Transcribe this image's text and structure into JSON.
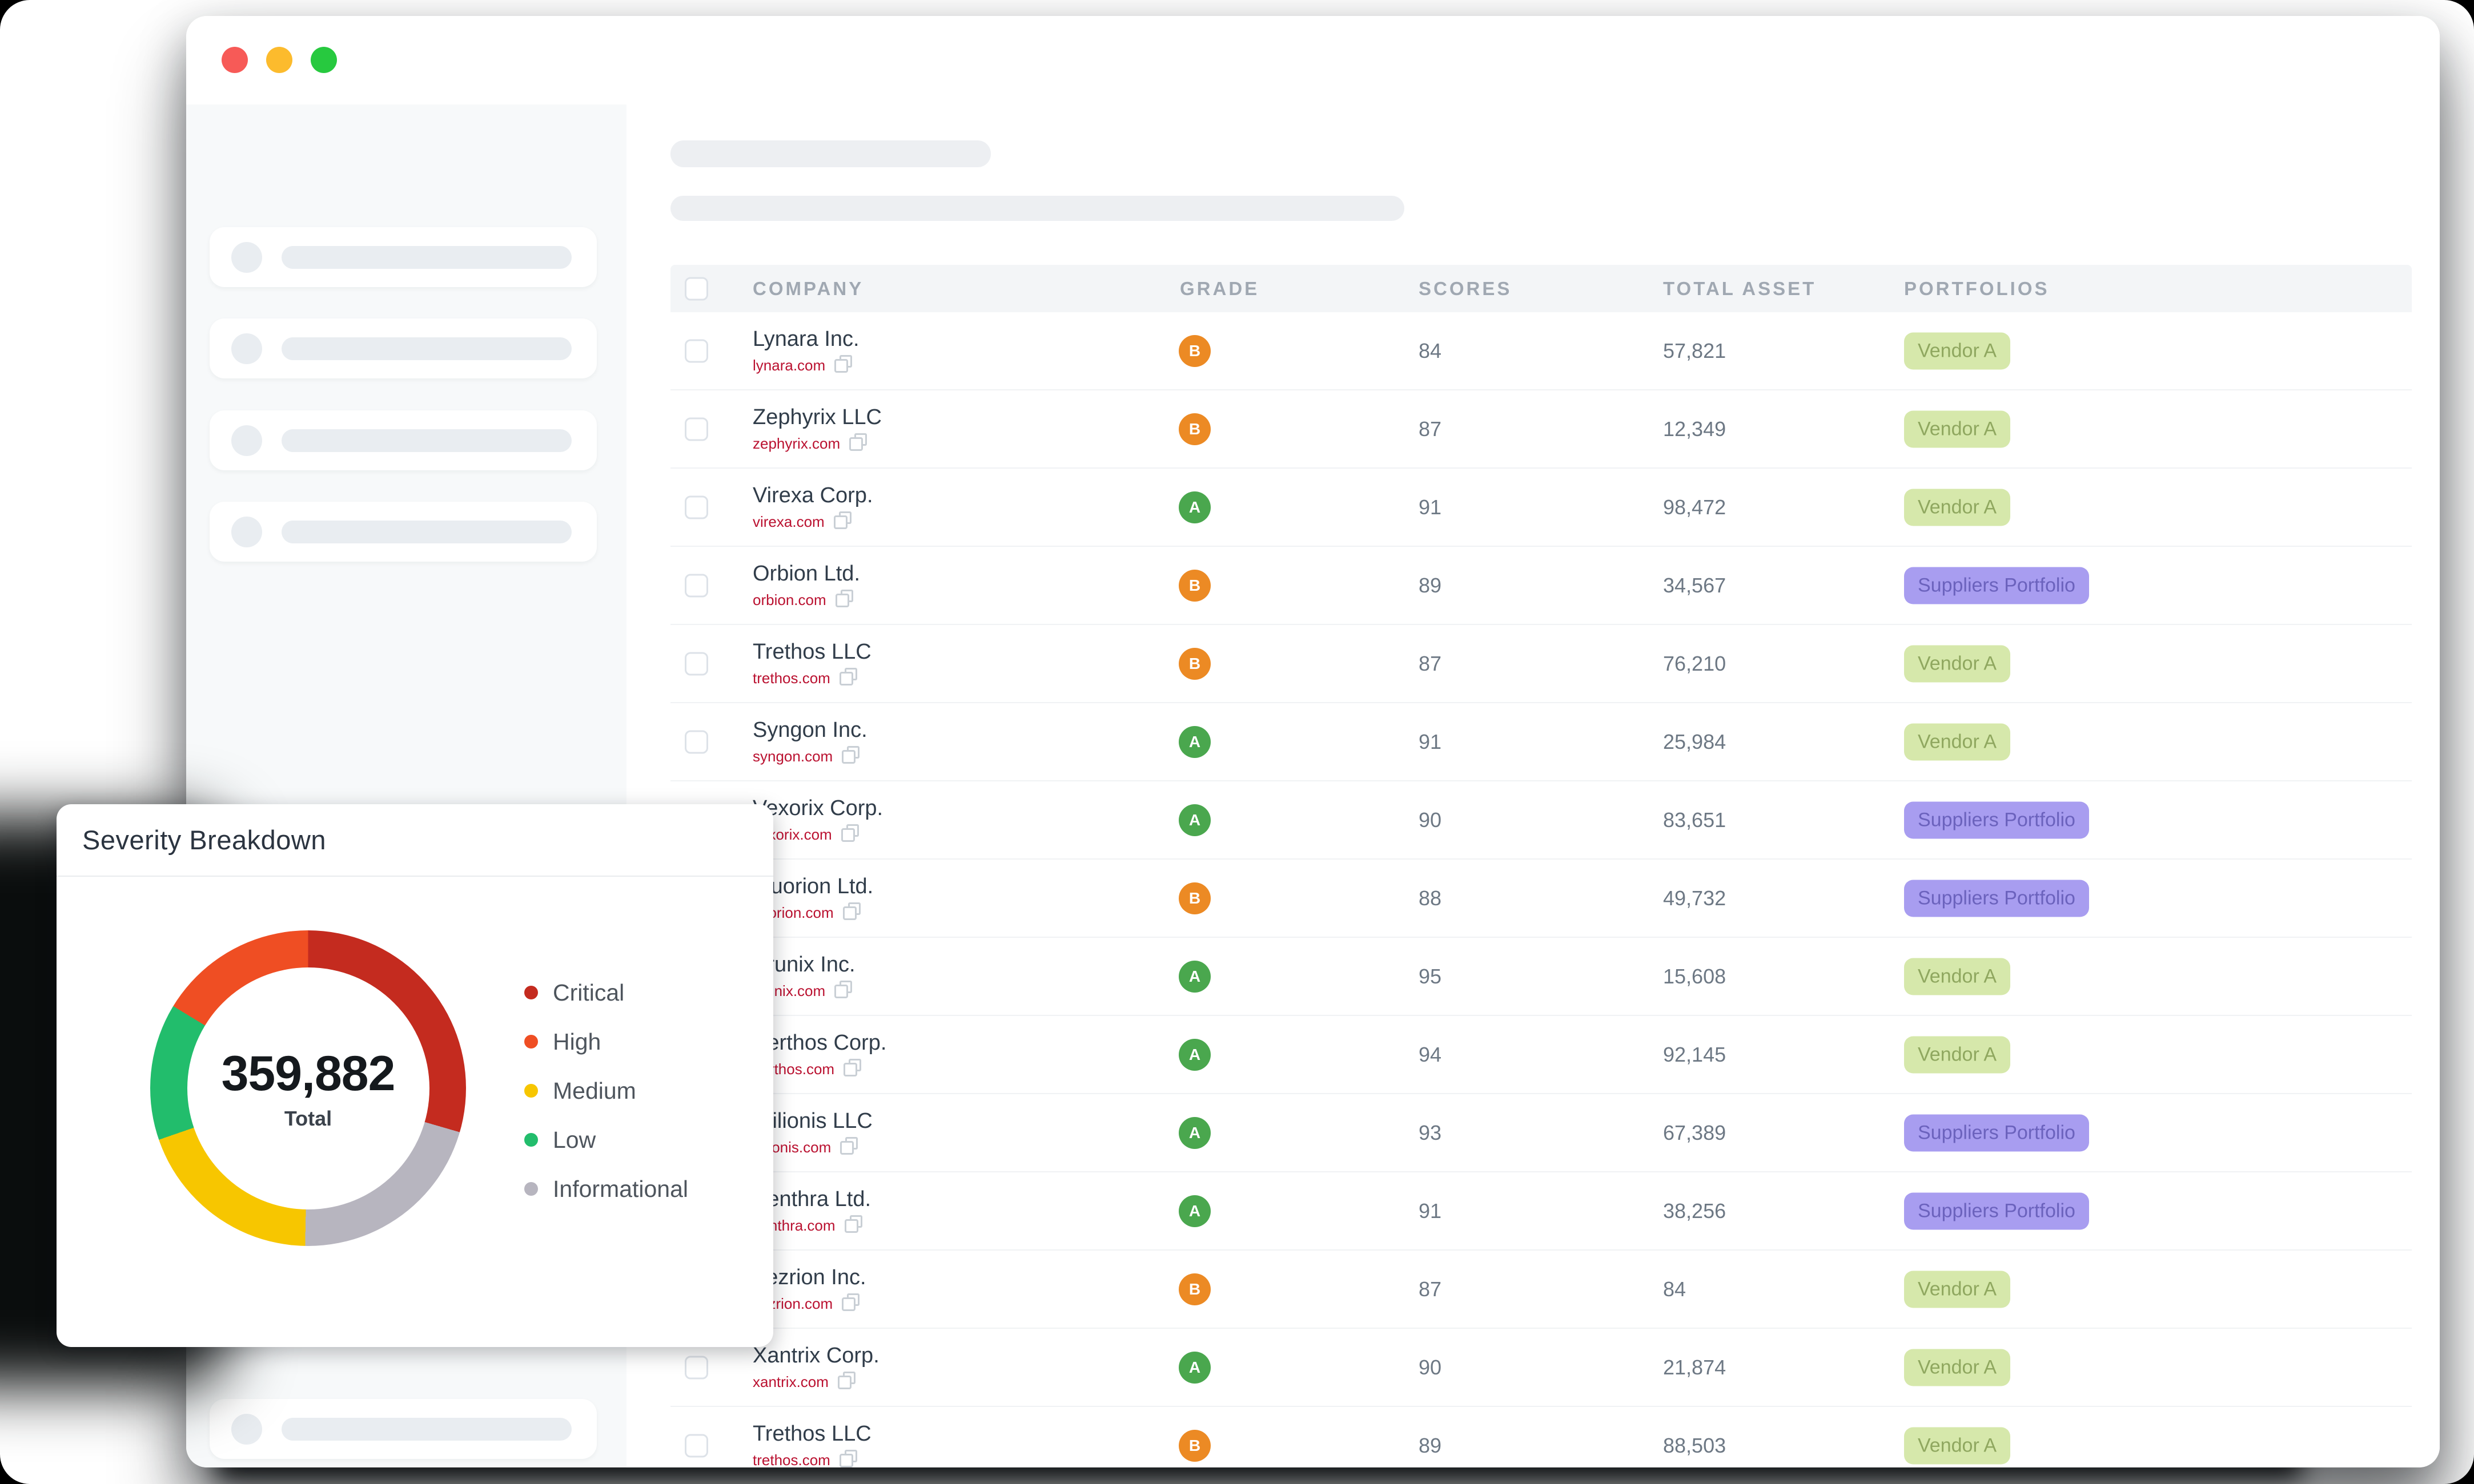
{
  "window": {
    "traffic_lights": [
      {
        "name": "close-button",
        "color": "#f75a57"
      },
      {
        "name": "minimize-button",
        "color": "#fcbb2d"
      },
      {
        "name": "zoom-button",
        "color": "#27c93f"
      }
    ]
  },
  "sidebar": {
    "top_skeleton_items": 4,
    "bottom_skeleton_items": 2
  },
  "severity_card": {
    "title": "Severity Breakdown",
    "total_value": "359,882",
    "total_label": "Total",
    "legend": [
      {
        "label": "Critical",
        "color": "#c42b1f"
      },
      {
        "label": "High",
        "color": "#ef4e23"
      },
      {
        "label": "Medium",
        "color": "#f7c600"
      },
      {
        "label": "Low",
        "color": "#22bd6c"
      },
      {
        "label": "Informational",
        "color": "#b7b5bf"
      }
    ]
  },
  "chart_data": {
    "type": "pie",
    "subtype": "donut",
    "title": "Severity Breakdown",
    "total": 359882,
    "center_label": "Total",
    "legend_position": "right",
    "draw_order_clockwise_from_top": [
      "Critical",
      "Informational",
      "Medium",
      "Low",
      "High"
    ],
    "segments": [
      {
        "label": "Critical",
        "color": "#c42b1f",
        "percent": 29.5,
        "approx_value": 106165
      },
      {
        "label": "High",
        "color": "#ef4e23",
        "percent": 16.3,
        "approx_value": 58661
      },
      {
        "label": "Medium",
        "color": "#f7c600",
        "percent": 19.4,
        "approx_value": 69817
      },
      {
        "label": "Low",
        "color": "#22bd6c",
        "percent": 14.0,
        "approx_value": 50383
      },
      {
        "label": "Informational",
        "color": "#b7b5bf",
        "percent": 20.8,
        "approx_value": 74856
      }
    ]
  },
  "table": {
    "headers": [
      "COMPANY",
      "GRADE",
      "SCORES",
      "TOTAL ASSET",
      "PORTFOLIOS"
    ],
    "rows": [
      {
        "company": "Lynara Inc.",
        "domain": "lynara.com",
        "grade": "B",
        "score": "84",
        "total_asset": "57,821",
        "portfolio": "Vendor A",
        "portfolio_style": "green"
      },
      {
        "company": "Zephyrix LLC",
        "domain": "zephyrix.com",
        "grade": "B",
        "score": "87",
        "total_asset": "12,349",
        "portfolio": "Vendor A",
        "portfolio_style": "green"
      },
      {
        "company": "Virexa Corp.",
        "domain": "virexa.com",
        "grade": "A",
        "score": "91",
        "total_asset": "98,472",
        "portfolio": "Vendor A",
        "portfolio_style": "green"
      },
      {
        "company": "Orbion Ltd.",
        "domain": "orbion.com",
        "grade": "B",
        "score": "89",
        "total_asset": "34,567",
        "portfolio": "Suppliers Portfolio",
        "portfolio_style": "purple"
      },
      {
        "company": "Trethos LLC",
        "domain": "trethos.com",
        "grade": "B",
        "score": "87",
        "total_asset": "76,210",
        "portfolio": "Vendor A",
        "portfolio_style": "green"
      },
      {
        "company": "Syngon Inc.",
        "domain": "syngon.com",
        "grade": "A",
        "score": "91",
        "total_asset": "25,984",
        "portfolio": "Vendor A",
        "portfolio_style": "green"
      },
      {
        "company": "Vexorix Corp.",
        "domain": "vexorix.com",
        "grade": "A",
        "score": "90",
        "total_asset": "83,651",
        "portfolio": "Suppliers Portfolio",
        "portfolio_style": "purple"
      },
      {
        "company": "Fluorion Ltd.",
        "domain": "fluorion.com",
        "grade": "B",
        "score": "88",
        "total_asset": "49,732",
        "portfolio": "Suppliers Portfolio",
        "portfolio_style": "purple"
      },
      {
        "company": "Brunix Inc.",
        "domain": "brunix.com",
        "grade": "A",
        "score": "95",
        "total_asset": "15,608",
        "portfolio": "Vendor A",
        "portfolio_style": "green"
      },
      {
        "company": "Berthos Corp.",
        "domain": "berthos.com",
        "grade": "A",
        "score": "94",
        "total_asset": "92,145",
        "portfolio": "Vendor A",
        "portfolio_style": "green"
      },
      {
        "company": "Trilionis LLC",
        "domain": "trilionis.com",
        "grade": "A",
        "score": "93",
        "total_asset": "67,389",
        "portfolio": "Suppliers Portfolio",
        "portfolio_style": "purple"
      },
      {
        "company": "Penthra Ltd.",
        "domain": "penthra.com",
        "grade": "A",
        "score": "91",
        "total_asset": "38,256",
        "portfolio": "Suppliers Portfolio",
        "portfolio_style": "purple"
      },
      {
        "company": "Vezrion Inc.",
        "domain": "vezrion.com",
        "grade": "B",
        "score": "87",
        "total_asset": "84",
        "portfolio": "Vendor A",
        "portfolio_style": "green"
      },
      {
        "company": "Xantrix Corp.",
        "domain": "xantrix.com",
        "grade": "A",
        "score": "90",
        "total_asset": "21,874",
        "portfolio": "Vendor A",
        "portfolio_style": "green"
      },
      {
        "company": "Trethos LLC",
        "domain": "trethos.com",
        "grade": "B",
        "score": "89",
        "total_asset": "88,503",
        "portfolio": "Vendor A",
        "portfolio_style": "green"
      }
    ]
  },
  "colors": {
    "grade_a": "#4aa74e",
    "grade_b": "#ec8a24",
    "domain_link": "#ba1130",
    "table_header_bg": "#f3f5f7",
    "sidebar_bg": "#f7f9fa"
  }
}
